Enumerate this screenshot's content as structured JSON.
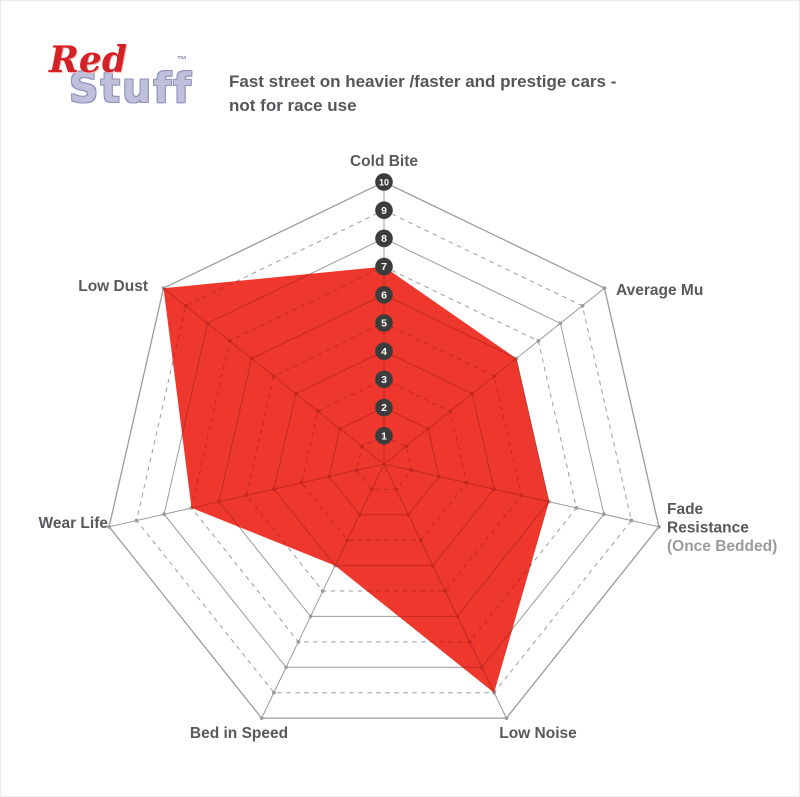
{
  "header": {
    "logo": {
      "word1": "Red",
      "word2": "Stuff",
      "trademark": "™",
      "word1_color": "#d32127",
      "word2_color": "#bdbfdb"
    },
    "subtitle_line1": "Fast street on heavier /faster and prestige cars -",
    "subtitle_line2": "not for race use"
  },
  "chart_data": {
    "type": "radar",
    "title": "RedStuff brake pad performance profile",
    "categories": [
      "Cold Bite",
      "Average Mu",
      "Fade Resistance (Once Bedded)",
      "Low Noise",
      "Bed in Speed",
      "Wear Life",
      "Low Dust"
    ],
    "values": [
      7,
      6,
      6,
      9,
      4,
      7,
      10
    ],
    "scale_min": 0,
    "scale_max": 10,
    "tick_labels": [
      "1",
      "2",
      "3",
      "4",
      "5",
      "6",
      "7",
      "8",
      "9",
      "10"
    ],
    "grid": "on",
    "grid_rings": 10,
    "ring_style_note": "odd rings dashed, even rings solid, ticks numbered on top axis",
    "fill_color": "#ee382e",
    "grid_color": "#9c9c9c",
    "grid_over_fill_color": "#c4271f",
    "tick_marker_fill": "#3c3c3c",
    "tick_marker_text_color": "#ffffff",
    "label_color": "#58595c",
    "label_muted_color": "#9b9b9b",
    "axis_labels": [
      {
        "lines": [
          "Cold Bite"
        ],
        "muted_line_index": -1
      },
      {
        "lines": [
          "Average Mu"
        ],
        "muted_line_index": -1
      },
      {
        "lines": [
          "Fade",
          "Resistance",
          "(Once Bedded)"
        ],
        "muted_line_index": 2
      },
      {
        "lines": [
          "Low Noise"
        ],
        "muted_line_index": -1
      },
      {
        "lines": [
          "Bed in Speed"
        ],
        "muted_line_index": -1
      },
      {
        "lines": [
          "Wear Life"
        ],
        "muted_line_index": -1
      },
      {
        "lines": [
          "Low Dust"
        ],
        "muted_line_index": -1
      }
    ]
  }
}
